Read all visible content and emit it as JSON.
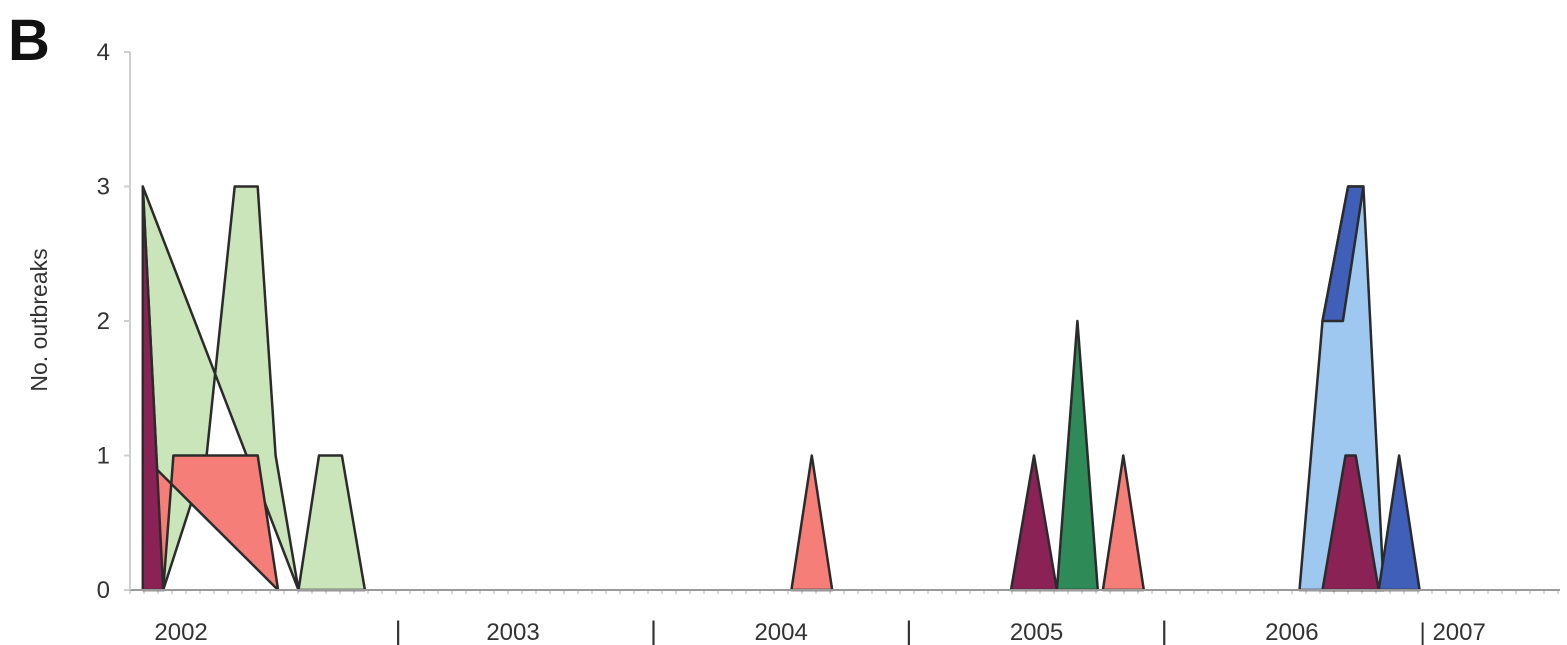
{
  "panel_label": "B",
  "chart_data": {
    "type": "area",
    "title": "",
    "xlabel": "",
    "ylabel": "No. outbreaks",
    "ylim": [
      0,
      4
    ],
    "yticks": [
      0,
      1,
      2,
      3,
      4
    ],
    "grid": false,
    "x_axis_labels": [
      {
        "text": "2002",
        "x": 2002.15
      },
      {
        "text": "|",
        "x": 2003.0
      },
      {
        "text": "2003",
        "x": 2003.45
      },
      {
        "text": "|",
        "x": 2004.0
      },
      {
        "text": "2004",
        "x": 2004.5
      },
      {
        "text": "|",
        "x": 2005.0
      },
      {
        "text": "2005",
        "x": 2005.5
      },
      {
        "text": "|",
        "x": 2006.0
      },
      {
        "text": "2006",
        "x": 2006.5
      },
      {
        "text": "| 2007",
        "x": 2007.0
      }
    ],
    "xrange": [
      2001.95,
      2007.55
    ],
    "series": [
      {
        "color": "#c9e5b9",
        "points": [
          [
            2002.0,
            3
          ],
          [
            2002.08,
            0
          ],
          [
            2002.25,
            1
          ],
          [
            2002.36,
            3
          ],
          [
            2002.45,
            3
          ],
          [
            2002.52,
            1
          ],
          [
            2002.61,
            0
          ]
        ]
      },
      {
        "color": "#c9e5b9",
        "points": [
          [
            2002.61,
            0
          ],
          [
            2002.69,
            1
          ],
          [
            2002.78,
            1
          ],
          [
            2002.87,
            0
          ]
        ]
      },
      {
        "color": "#f57f78",
        "points": [
          [
            2002.0,
            1
          ],
          [
            2002.08,
            0
          ],
          [
            2002.12,
            1
          ],
          [
            2002.36,
            1
          ],
          [
            2002.45,
            1
          ],
          [
            2002.53,
            0
          ]
        ]
      },
      {
        "color": "#8b2256",
        "points": [
          [
            2002.0,
            3
          ],
          [
            2002.08,
            0
          ],
          [
            2002.0,
            0
          ]
        ]
      },
      {
        "color": "#f57f78",
        "points": [
          [
            2004.54,
            0
          ],
          [
            2004.62,
            1
          ],
          [
            2004.7,
            0
          ]
        ]
      },
      {
        "color": "#8b2256",
        "points": [
          [
            2005.4,
            0
          ],
          [
            2005.49,
            1
          ],
          [
            2005.58,
            0
          ]
        ]
      },
      {
        "color": "#2e8b57",
        "points": [
          [
            2005.58,
            0
          ],
          [
            2005.66,
            2
          ],
          [
            2005.74,
            0
          ]
        ]
      },
      {
        "color": "#f57f78",
        "points": [
          [
            2005.76,
            0
          ],
          [
            2005.84,
            1
          ],
          [
            2005.92,
            0
          ]
        ]
      },
      {
        "color": "#9ec8ef",
        "points": [
          [
            2006.53,
            0
          ],
          [
            2006.62,
            2
          ],
          [
            2006.72,
            3
          ],
          [
            2006.78,
            3
          ],
          [
            2006.86,
            0
          ]
        ]
      },
      {
        "color": "#3f5fb8",
        "points": [
          [
            2006.62,
            2
          ],
          [
            2006.7,
            2
          ],
          [
            2006.78,
            3
          ],
          [
            2006.72,
            3
          ]
        ]
      },
      {
        "color": "#8b2256",
        "points": [
          [
            2006.62,
            0
          ],
          [
            2006.71,
            1
          ],
          [
            2006.75,
            1
          ],
          [
            2006.84,
            0
          ]
        ]
      },
      {
        "color": "#3f5fb8",
        "points": [
          [
            2006.84,
            0
          ],
          [
            2006.92,
            1
          ],
          [
            2007.0,
            0
          ]
        ]
      }
    ]
  }
}
